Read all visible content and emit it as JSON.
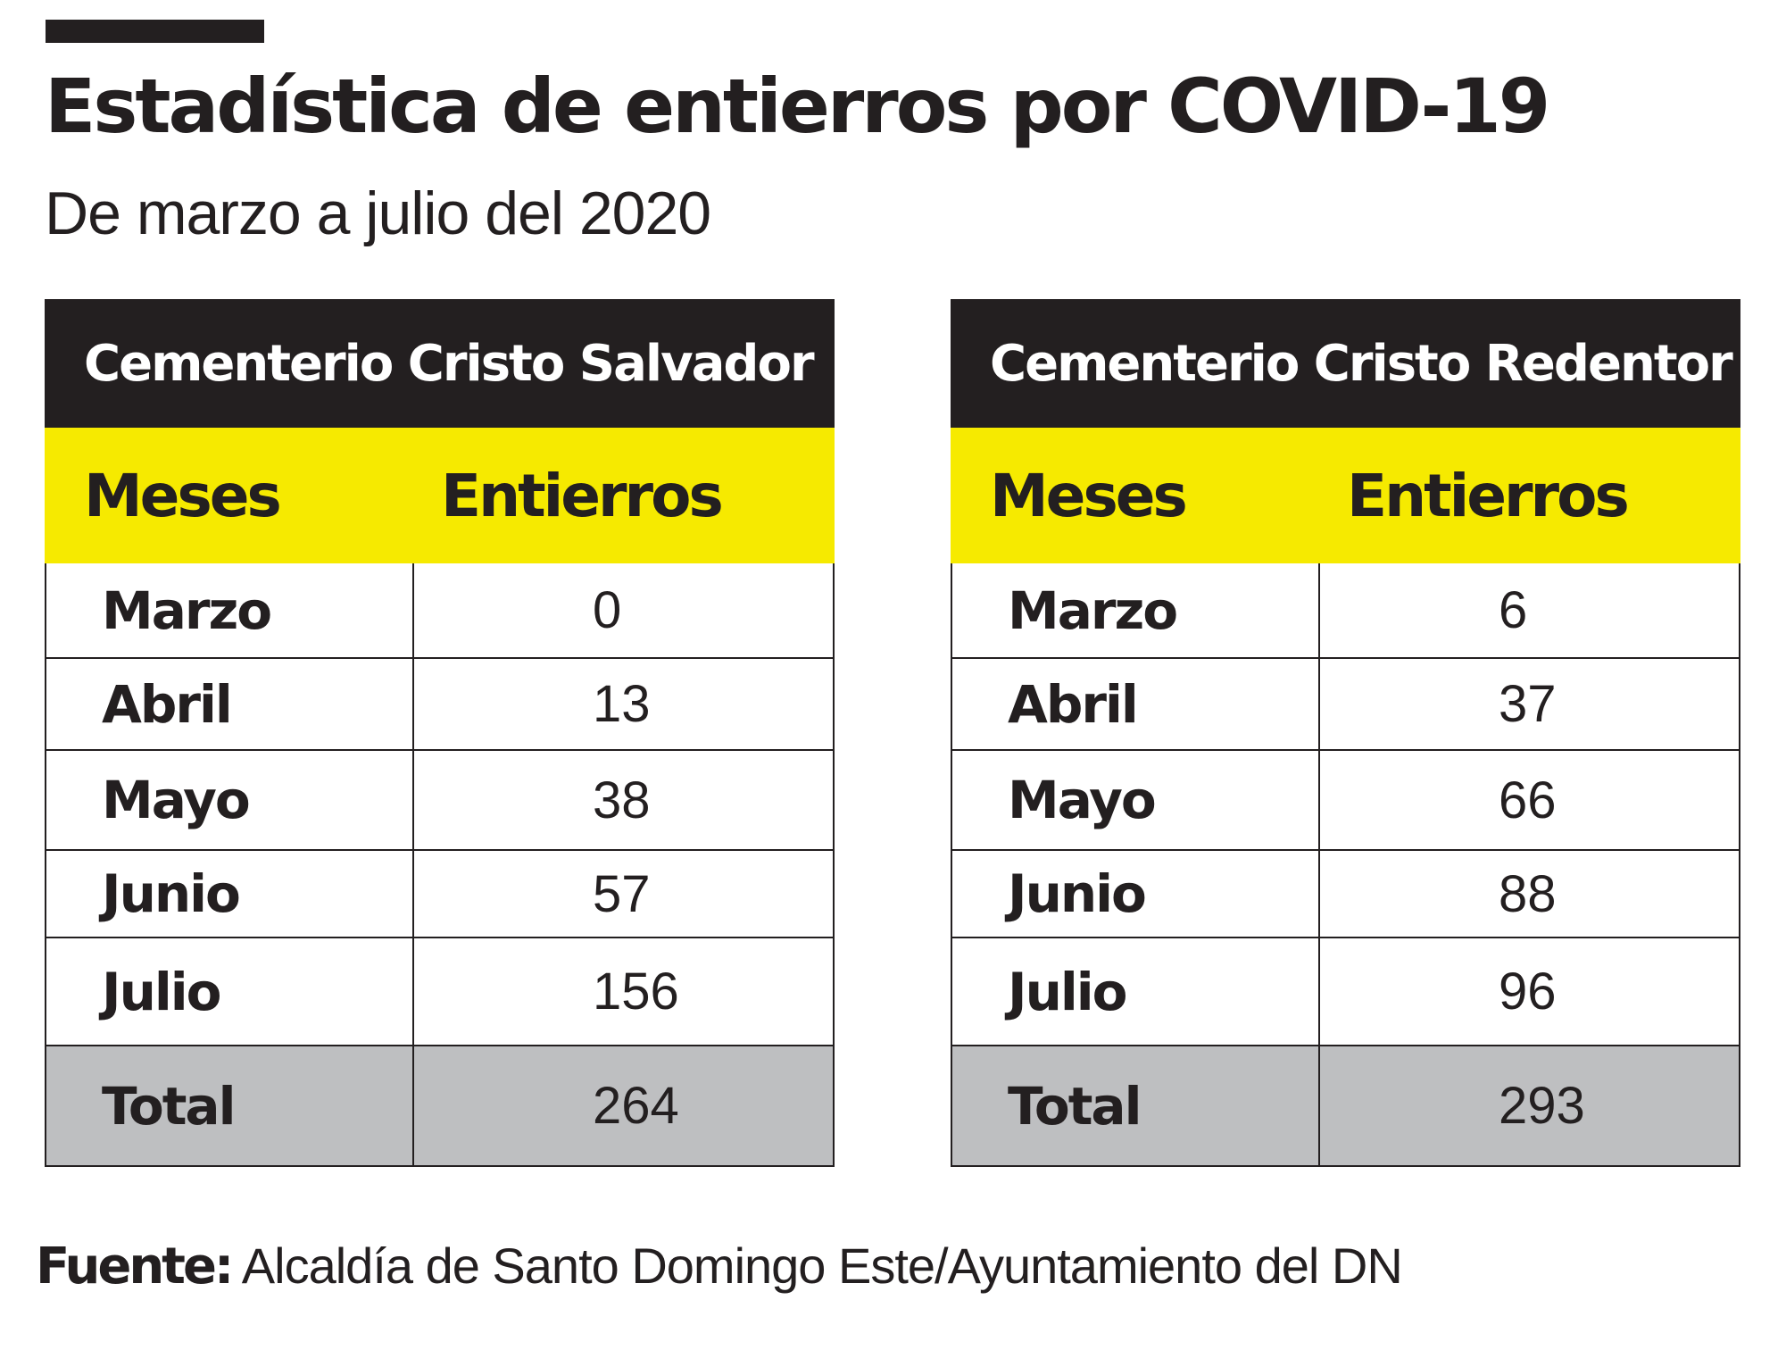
{
  "title": "Estadística de entierros por COVID-19",
  "subtitle": "De marzo a julio del 2020",
  "columns": {
    "months": "Meses",
    "burials": "Entierros"
  },
  "tables": [
    {
      "name": "Cementerio Cristo Salvador",
      "rows": [
        {
          "month": "Marzo",
          "value": "0"
        },
        {
          "month": "Abril",
          "value": "13"
        },
        {
          "month": "Mayo",
          "value": "38"
        },
        {
          "month": "Junio",
          "value": "57"
        },
        {
          "month": "Julio",
          "value": "156"
        }
      ],
      "total_label": "Total",
      "total": "264"
    },
    {
      "name": "Cementerio Cristo Redentor",
      "rows": [
        {
          "month": "Marzo",
          "value": "6"
        },
        {
          "month": "Abril",
          "value": "37"
        },
        {
          "month": "Mayo",
          "value": "66"
        },
        {
          "month": "Junio",
          "value": "88"
        },
        {
          "month": "Julio",
          "value": "96"
        }
      ],
      "total_label": "Total",
      "total": "293"
    }
  ],
  "source": {
    "label": "Fuente:",
    "text": " Alcaldía de Santo Domingo Este/Ayuntamiento del DN"
  },
  "colors": {
    "header": "#231f20",
    "accent": "#f6ea00",
    "total_row": "#bebfc1"
  }
}
